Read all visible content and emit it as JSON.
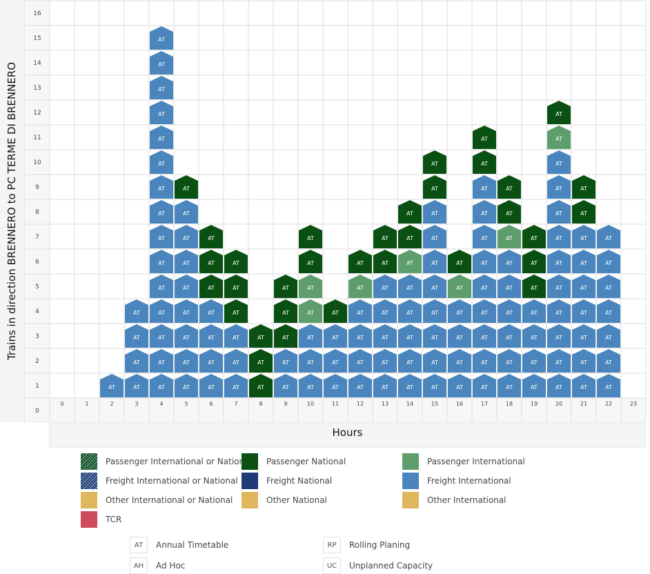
{
  "chart_data": {
    "type": "bar",
    "stacked": true,
    "xlabel": "Hours",
    "ylabel": "Trains in direction BRENNERO to PC TERME DI BRENNERO",
    "x_ticks": [
      "0",
      "1",
      "2",
      "3",
      "4",
      "5",
      "6",
      "7",
      "8",
      "9",
      "10",
      "11",
      "12",
      "13",
      "14",
      "15",
      "16",
      "17",
      "18",
      "19",
      "20",
      "21",
      "22",
      "23"
    ],
    "y_ticks": [
      "0",
      "1",
      "2",
      "3",
      "4",
      "5",
      "6",
      "7",
      "8",
      "9",
      "10",
      "11",
      "12",
      "13",
      "14",
      "15",
      "16"
    ],
    "ylim": [
      0,
      16
    ],
    "grid": true,
    "block_label": "AT",
    "category_keys": {
      "FI": "Freight International",
      "PN": "Passenger National",
      "PI": "Passenger International"
    },
    "colors": {
      "FI": "#4a86bd",
      "PN": "#0b5013",
      "PI": "#5e9d6c"
    },
    "stacks": [
      [],
      [],
      [
        "FI"
      ],
      [
        "FI",
        "FI",
        "FI",
        "FI"
      ],
      [
        "FI",
        "FI",
        "FI",
        "FI",
        "FI",
        "FI",
        "FI",
        "FI",
        "FI",
        "FI",
        "FI",
        "FI",
        "FI",
        "FI",
        "FI"
      ],
      [
        "FI",
        "FI",
        "FI",
        "FI",
        "FI",
        "FI",
        "FI",
        "FI",
        "PN"
      ],
      [
        "FI",
        "FI",
        "FI",
        "FI",
        "PN",
        "PN",
        "PN"
      ],
      [
        "FI",
        "FI",
        "FI",
        "PN",
        "PN",
        "PN"
      ],
      [
        "PN",
        "PN",
        "PN"
      ],
      [
        "FI",
        "FI",
        "PN",
        "PN",
        "PN"
      ],
      [
        "FI",
        "FI",
        "FI",
        "PI",
        "PI",
        "PN",
        "PN"
      ],
      [
        "FI",
        "FI",
        "FI",
        "PN"
      ],
      [
        "FI",
        "FI",
        "FI",
        "FI",
        "PI",
        "PN"
      ],
      [
        "FI",
        "FI",
        "FI",
        "FI",
        "FI",
        "PN",
        "PN"
      ],
      [
        "FI",
        "FI",
        "FI",
        "FI",
        "FI",
        "PI",
        "PN",
        "PN"
      ],
      [
        "FI",
        "FI",
        "FI",
        "FI",
        "FI",
        "FI",
        "FI",
        "FI",
        "PN",
        "PN"
      ],
      [
        "FI",
        "FI",
        "FI",
        "FI",
        "PI",
        "PN"
      ],
      [
        "FI",
        "FI",
        "FI",
        "FI",
        "FI",
        "FI",
        "FI",
        "FI",
        "FI",
        "PN",
        "PN"
      ],
      [
        "FI",
        "FI",
        "FI",
        "FI",
        "FI",
        "FI",
        "PI",
        "PN",
        "PN"
      ],
      [
        "FI",
        "FI",
        "FI",
        "FI",
        "PN",
        "PN",
        "PN"
      ],
      [
        "FI",
        "FI",
        "FI",
        "FI",
        "FI",
        "FI",
        "FI",
        "FI",
        "FI",
        "FI",
        "PI",
        "PN"
      ],
      [
        "FI",
        "FI",
        "FI",
        "FI",
        "FI",
        "FI",
        "FI",
        "PN",
        "PN"
      ],
      [
        "FI",
        "FI",
        "FI",
        "FI",
        "FI",
        "FI",
        "FI"
      ],
      []
    ],
    "totals": [
      0,
      0,
      1,
      4,
      15,
      9,
      7,
      6,
      3,
      5,
      7,
      4,
      6,
      7,
      8,
      10,
      6,
      11,
      9,
      7,
      12,
      9,
      7,
      0
    ]
  },
  "legend": {
    "categories": [
      {
        "label": "Passenger International or National",
        "color": "#0b5013",
        "pattern": "hatch"
      },
      {
        "label": "Passenger National",
        "color": "#0b5013",
        "pattern": "solid"
      },
      {
        "label": "Passenger International",
        "color": "#5e9d6c",
        "pattern": "solid"
      },
      {
        "label": "Freight International or National",
        "color": "#1f3a75",
        "pattern": "hatch"
      },
      {
        "label": "Freight National",
        "color": "#1f3a75",
        "pattern": "solid"
      },
      {
        "label": "Freight International",
        "color": "#4a86bd",
        "pattern": "solid"
      },
      {
        "label": "Other International or National",
        "color": "#e0b75c",
        "pattern": "solid"
      },
      {
        "label": "Other National",
        "color": "#e0b75c",
        "pattern": "solid"
      },
      {
        "label": "Other International",
        "color": "#e0b75c",
        "pattern": "solid"
      },
      {
        "label": "TCR",
        "color": "#cd4b5b",
        "pattern": "solid"
      }
    ],
    "abbreviations": [
      {
        "code": "AT",
        "label": "Annual Timetable"
      },
      {
        "code": "RP",
        "label": "Rolling Planing"
      },
      {
        "code": "AH",
        "label": "Ad Hoc"
      },
      {
        "code": "UC",
        "label": "Unplanned Capacity"
      }
    ]
  }
}
